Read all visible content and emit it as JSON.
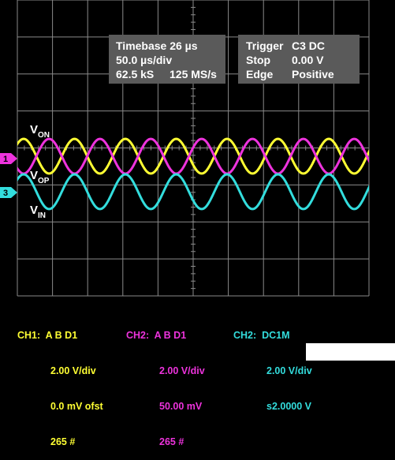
{
  "info_box_left": {
    "row1": "Timebase 26 µs",
    "row2": "50.0 µs/div",
    "row3_a": "62.5 kS",
    "row3_b": "125 MS/s"
  },
  "info_box_right": {
    "row1_label": "Trigger",
    "row1_value": "C3  DC",
    "row2_label": "Stop",
    "row2_value": "0.00 V",
    "row3_label": "Edge",
    "row3_value": "Positive"
  },
  "signal_labels": {
    "von_main": "V",
    "von_sub": "ON",
    "vop_main": "V",
    "vop_sub": "OP",
    "vin_main": "V",
    "vin_sub": "IN"
  },
  "channel_markers": {
    "marker_1": "1",
    "marker_3": "3"
  },
  "colors": {
    "background": "#000000",
    "grid": "#8a8a8a",
    "info_box": "#5a5a5a",
    "ch1_yellow": "#ffff33",
    "ch2_magenta": "#ee33dd",
    "ch3_cyan": "#33dddd"
  },
  "readouts": {
    "ch1": {
      "title": "CH1:  A B D1",
      "line1": "2.00 V/div",
      "line2": "0.0 mV ofst",
      "line3": "265 #"
    },
    "ch2": {
      "title": "CH2:  A B D1",
      "line1": "2.00 V/div",
      "line2": "50.00 mV",
      "line3": "265 #"
    },
    "ch3": {
      "title": "CH2:  DC1M",
      "line1": "2.00 V/div",
      "line2": "s2.0000 V"
    }
  }
}
